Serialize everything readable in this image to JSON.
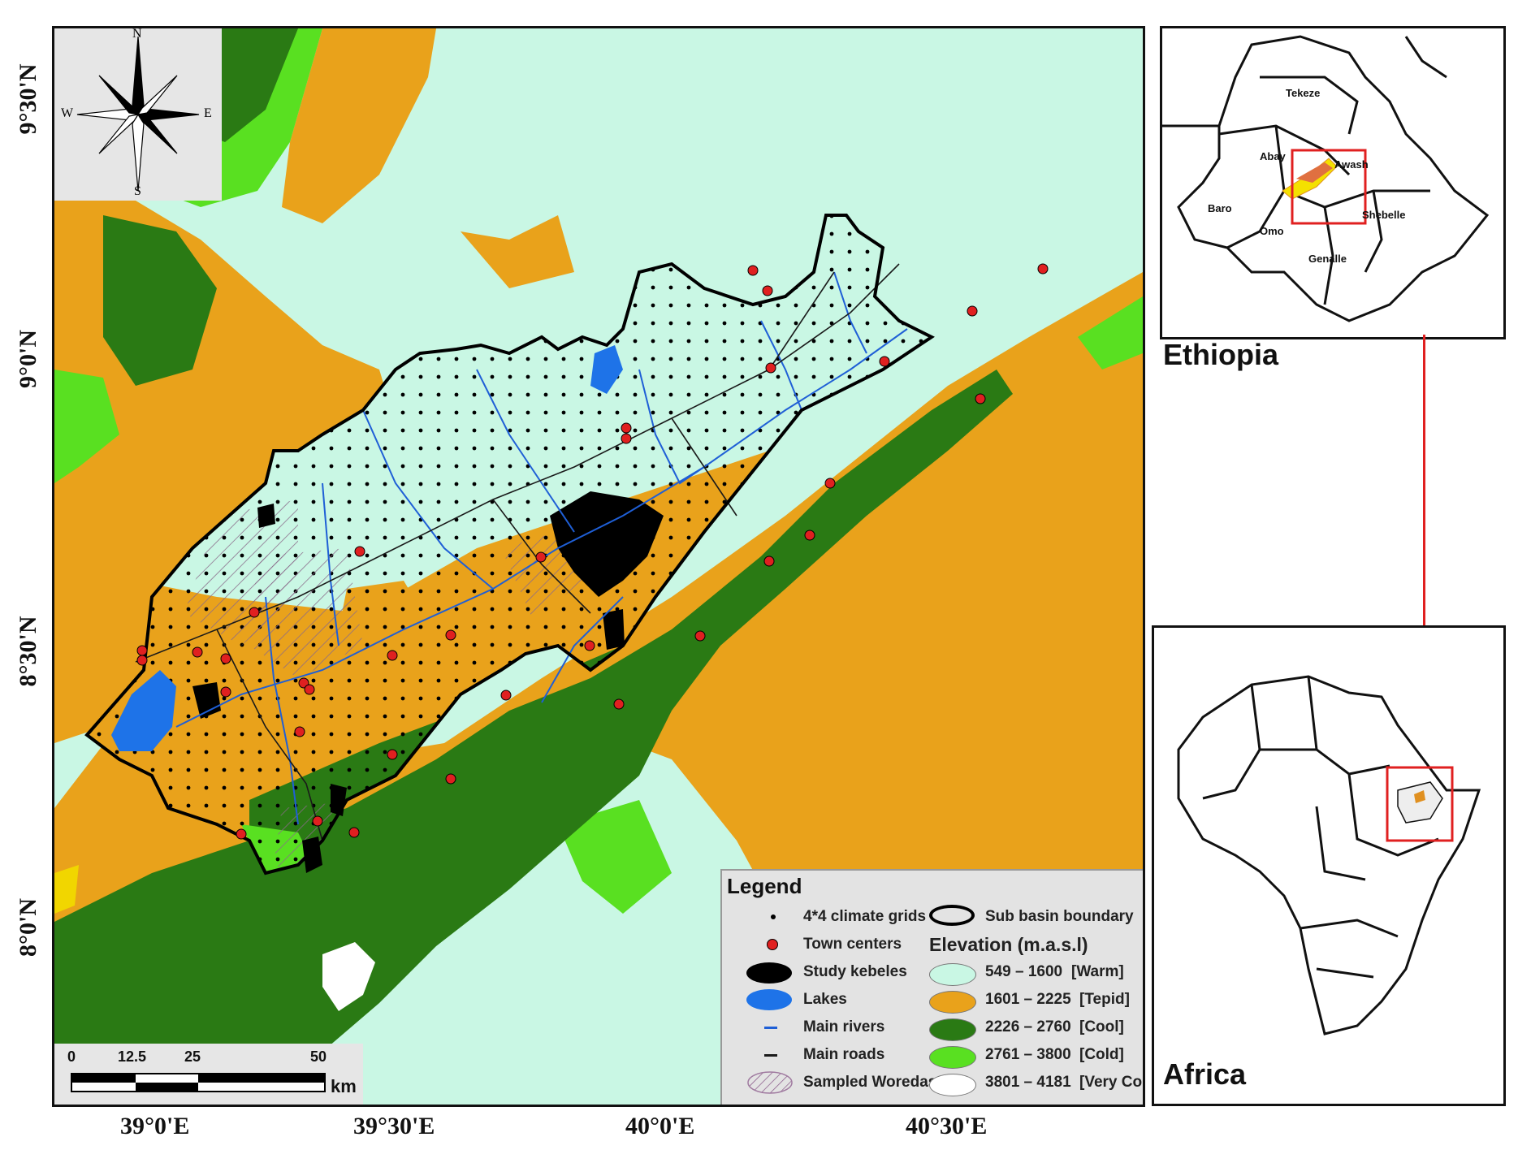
{
  "map": {
    "lat_labels": [
      "9°30'N",
      "9°0'N",
      "8°30'N",
      "8°0'N"
    ],
    "lon_labels": [
      "39°0'E",
      "39°30'E",
      "40°0'E",
      "40°30'E"
    ],
    "compass": {
      "n": "N",
      "s": "S",
      "e": "E",
      "w": "W"
    },
    "scale_bar": {
      "ticks": [
        "0",
        "12.5",
        "25",
        "50"
      ],
      "unit": "km"
    }
  },
  "legend": {
    "title": "Legend",
    "items": {
      "climate_grids": "4*4 climate grids",
      "town_centers": "Town centers",
      "study_kebeles": "Study kebeles",
      "lakes": "Lakes",
      "main_rivers": "Main rivers",
      "main_roads": "Main roads",
      "sampled_woredas": "Sampled Woredas",
      "sub_basin": "Sub basin boundary"
    },
    "elevation_title": "Elevation (m.a.s.l)",
    "elevation_classes": [
      {
        "range": "549 – 1600",
        "label": "[Warm]",
        "color": "#c9f7e4"
      },
      {
        "range": "1601 – 2225",
        "label": "[Tepid]",
        "color": "#e9a21b"
      },
      {
        "range": "2226 – 2760",
        "label": "[Cool]",
        "color": "#2a7a14"
      },
      {
        "range": "2761 – 3800",
        "label": "[Cold]",
        "color": "#59e021"
      },
      {
        "range": "3801 – 4181",
        "label": "[Very Cold]",
        "color": "#ffffff"
      }
    ]
  },
  "insets": {
    "ethiopia": {
      "title": "Ethiopia",
      "basins": [
        "Tekeze",
        "Abay",
        "Awash",
        "Baro",
        "Omo",
        "Shebelle",
        "Genalle"
      ]
    },
    "africa": {
      "title": "Africa"
    }
  },
  "colors": {
    "warm": "#c9f7e4",
    "tepid": "#e9a21b",
    "cool": "#2a7a14",
    "cold": "#59e021",
    "lake": "#1e73e8",
    "river": "#1f5fd6",
    "town": "#e02020",
    "highlight": "#e02020"
  }
}
